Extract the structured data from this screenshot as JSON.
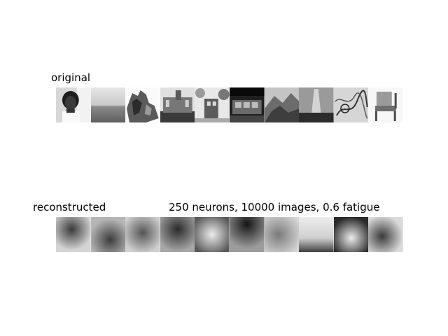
{
  "titles": {
    "original": "original",
    "reconstructed": "reconstructed",
    "params": "250 neurons, 10000 images, 0.6 fatigue"
  },
  "original_images": [
    {
      "name": "portrait",
      "tone": "#cfcfcf"
    },
    {
      "name": "horizon",
      "tone": "#b4b4b4"
    },
    {
      "name": "sculpture",
      "tone": "#efefef"
    },
    {
      "name": "cathedral",
      "tone": "#8a8a8a"
    },
    {
      "name": "tree-building",
      "tone": "#bdbdbd"
    },
    {
      "name": "bus",
      "tone": "#444444"
    },
    {
      "name": "mountain",
      "tone": "#8f8f8f"
    },
    {
      "name": "tower",
      "tone": "#777777"
    },
    {
      "name": "sketch",
      "tone": "#c8c8c8"
    },
    {
      "name": "chair",
      "tone": "#f0f0f0"
    }
  ],
  "reconstructed_images": [
    {
      "name": "recon-1",
      "tone": "#c8c8c8"
    },
    {
      "name": "recon-2",
      "tone": "#8d8d8d"
    },
    {
      "name": "recon-3",
      "tone": "#b0b0b0"
    },
    {
      "name": "recon-4",
      "tone": "#7f7f7f"
    },
    {
      "name": "recon-5",
      "tone": "#a4a4a4"
    },
    {
      "name": "recon-6",
      "tone": "#6f6f6f"
    },
    {
      "name": "recon-7",
      "tone": "#a8a8a8"
    },
    {
      "name": "recon-8",
      "tone": "#cfcfcf"
    },
    {
      "name": "recon-9",
      "tone": "#8a8a8a"
    },
    {
      "name": "recon-10",
      "tone": "#bcbcbc"
    }
  ]
}
